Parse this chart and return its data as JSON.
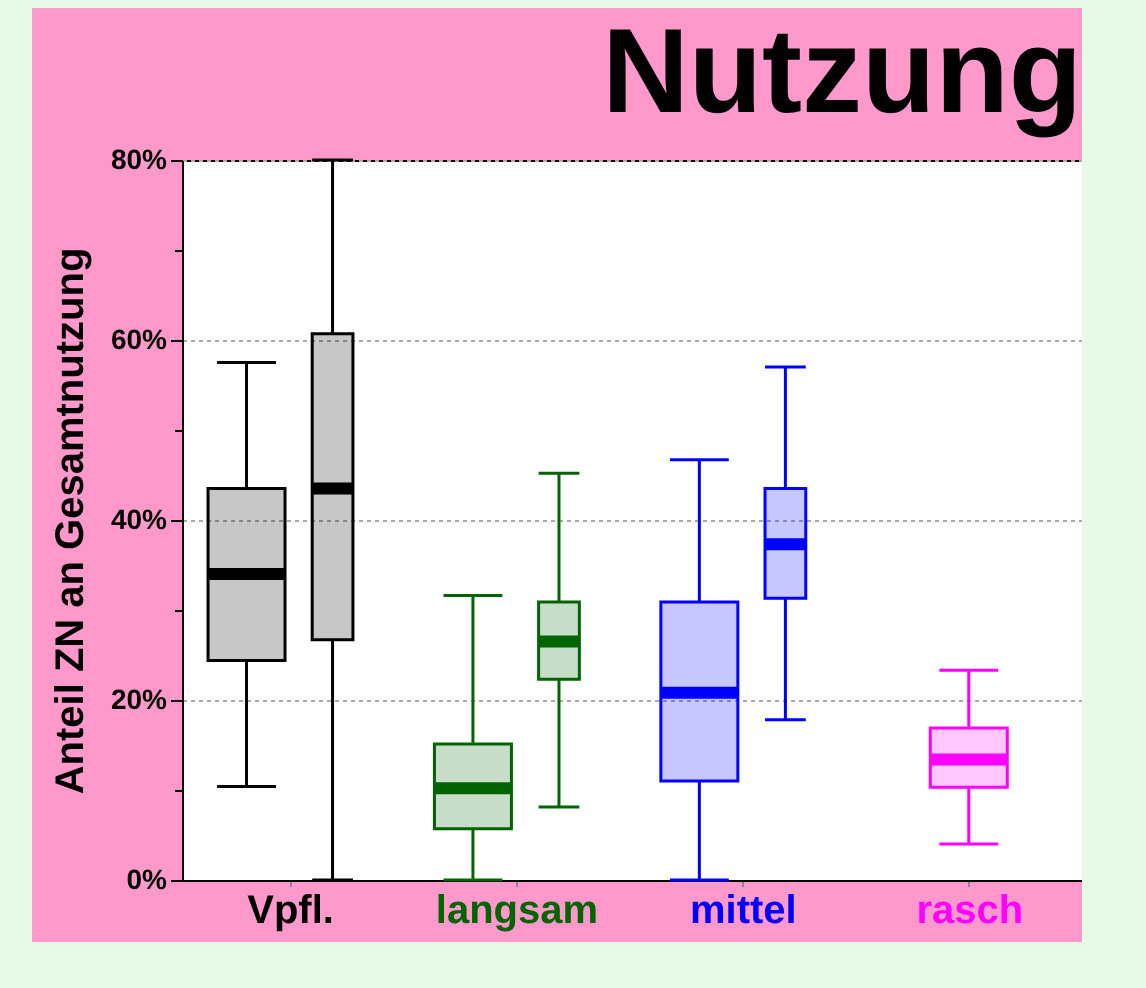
{
  "chart_data": {
    "type": "box",
    "title": "Nutzung",
    "ylabel": "Anteil ZN an Gesamtnutzung",
    "categories": [
      "Vpfl.",
      "langsam",
      "mittel",
      "rasch"
    ],
    "series": [
      {
        "colors": [
          "#000000",
          "#006400",
          "#0000ff",
          "#ff00ff"
        ],
        "boxes": [
          {
            "low": 10.4,
            "q1": 24.4,
            "median": 34,
            "q3": 43.5,
            "high": 57.5
          },
          {
            "low": 0,
            "q1": 5.7,
            "median": 10.2,
            "q3": 15.1,
            "high": 31.6
          },
          {
            "low": 0,
            "q1": 11,
            "median": 20.8,
            "q3": 30.9,
            "high": 46.7
          },
          {
            "low": 4,
            "q1": 10.3,
            "median": 13.4,
            "q3": 16.9,
            "high": 23.3
          }
        ]
      },
      {
        "colors": [
          "#000000",
          "#006400",
          "#0000ff",
          "#ff00ff"
        ],
        "boxes": [
          {
            "low": 0,
            "q1": 26.7,
            "median": 43.5,
            "q3": 60.7,
            "high": 80
          },
          {
            "low": 8.1,
            "q1": 22.3,
            "median": 26.5,
            "q3": 30.9,
            "high": 45.2
          },
          {
            "low": 17.8,
            "q1": 31.3,
            "median": 37.3,
            "q3": 43.5,
            "high": 57
          },
          null
        ]
      }
    ],
    "ylim": [
      0,
      80
    ],
    "yticks": [
      {
        "value": 0,
        "label": "0%"
      },
      {
        "value": 10,
        "label": null
      },
      {
        "value": 20,
        "label": "20%"
      },
      {
        "value": 30,
        "label": null
      },
      {
        "value": 40,
        "label": "40%"
      },
      {
        "value": 50,
        "label": null
      },
      {
        "value": 60,
        "label": "60%"
      },
      {
        "value": 70,
        "label": null
      },
      {
        "value": 80,
        "label": "80%"
      }
    ],
    "grid": "y"
  }
}
